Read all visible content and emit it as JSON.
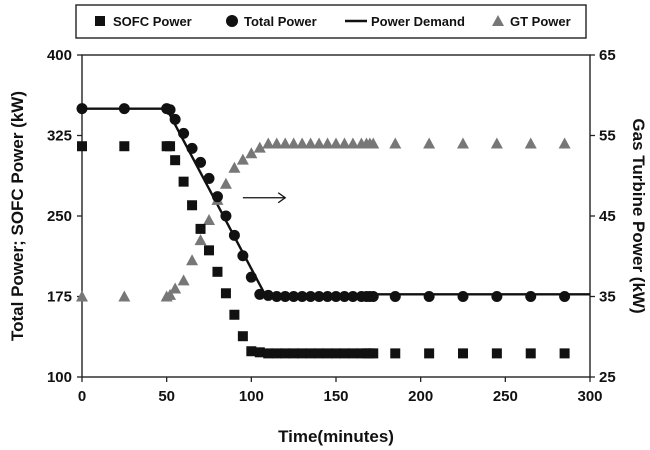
{
  "chart_data": {
    "type": "scatter",
    "xlabel": "Time(minutes)",
    "ylabel": "Total Power; SOFC Power (kW)",
    "y2label": "Gas Turbine Power (kW)",
    "xlim": [
      0,
      300
    ],
    "ylim": [
      100,
      400
    ],
    "y2lim": [
      25,
      65
    ],
    "xticks": [
      "0",
      "50",
      "100",
      "150",
      "200",
      "250",
      "300"
    ],
    "yticks": [
      "100",
      "175",
      "250",
      "325",
      "400"
    ],
    "y2ticks": [
      "25",
      "35",
      "45",
      "55",
      "65"
    ],
    "legend_position": "top",
    "grid": false,
    "series": [
      {
        "name": "SOFC Power",
        "marker": "square",
        "axis": "left",
        "color": "#111111",
        "x": [
          0,
          25,
          50,
          52,
          55,
          60,
          65,
          70,
          75,
          80,
          85,
          90,
          95,
          100,
          105,
          110,
          115,
          120,
          125,
          130,
          135,
          140,
          145,
          150,
          155,
          160,
          165,
          168,
          170,
          172,
          185,
          205,
          225,
          245,
          265,
          285
        ],
        "y": [
          315,
          315,
          315,
          315,
          302,
          282,
          260,
          238,
          218,
          198,
          178,
          158,
          138,
          124,
          123,
          122,
          122,
          122,
          122,
          122,
          122,
          122,
          122,
          122,
          122,
          122,
          122,
          122,
          122,
          122,
          122,
          122,
          122,
          122,
          122,
          122
        ]
      },
      {
        "name": "Total Power",
        "marker": "circle",
        "axis": "left",
        "color": "#111111",
        "x": [
          0,
          25,
          50,
          52,
          55,
          60,
          65,
          70,
          75,
          80,
          85,
          90,
          95,
          100,
          105,
          110,
          115,
          120,
          125,
          130,
          135,
          140,
          145,
          150,
          155,
          160,
          165,
          168,
          170,
          172,
          185,
          205,
          225,
          245,
          265,
          285
        ],
        "y": [
          350,
          350,
          350,
          349,
          340,
          327,
          313,
          300,
          285,
          268,
          250,
          232,
          213,
          193,
          177,
          176,
          175,
          175,
          175,
          175,
          175,
          175,
          175,
          175,
          175,
          175,
          175,
          175,
          175,
          175,
          175,
          175,
          175,
          175,
          175,
          175
        ]
      },
      {
        "name": "Power Demand",
        "marker": "line",
        "axis": "left",
        "color": "#111111",
        "x": [
          0,
          50,
          108,
          300
        ],
        "y": [
          350,
          350,
          177,
          177
        ]
      },
      {
        "name": "GT Power",
        "marker": "triangle",
        "axis": "right",
        "color": "#777777",
        "x": [
          0,
          25,
          50,
          52,
          55,
          60,
          65,
          70,
          75,
          80,
          85,
          90,
          95,
          100,
          105,
          110,
          115,
          120,
          125,
          130,
          135,
          140,
          145,
          150,
          155,
          160,
          165,
          168,
          170,
          172,
          185,
          205,
          225,
          245,
          265,
          285
        ],
        "y": [
          35.0,
          35.0,
          35.0,
          35.2,
          36.0,
          37.0,
          39.5,
          42.0,
          44.5,
          47.0,
          49.0,
          51.0,
          52.0,
          52.8,
          53.5,
          54.0,
          54.0,
          54.0,
          54.0,
          54.0,
          54.0,
          54.0,
          54.0,
          54.0,
          54.0,
          54.0,
          54.0,
          54.0,
          54.0,
          54.0,
          54.0,
          54.0,
          54.0,
          54.0,
          54.0,
          54.0
        ]
      }
    ],
    "annotations": [
      {
        "type": "arrow",
        "direction": "right",
        "from": [
          95,
          267
        ],
        "to": [
          120,
          267
        ]
      }
    ]
  }
}
